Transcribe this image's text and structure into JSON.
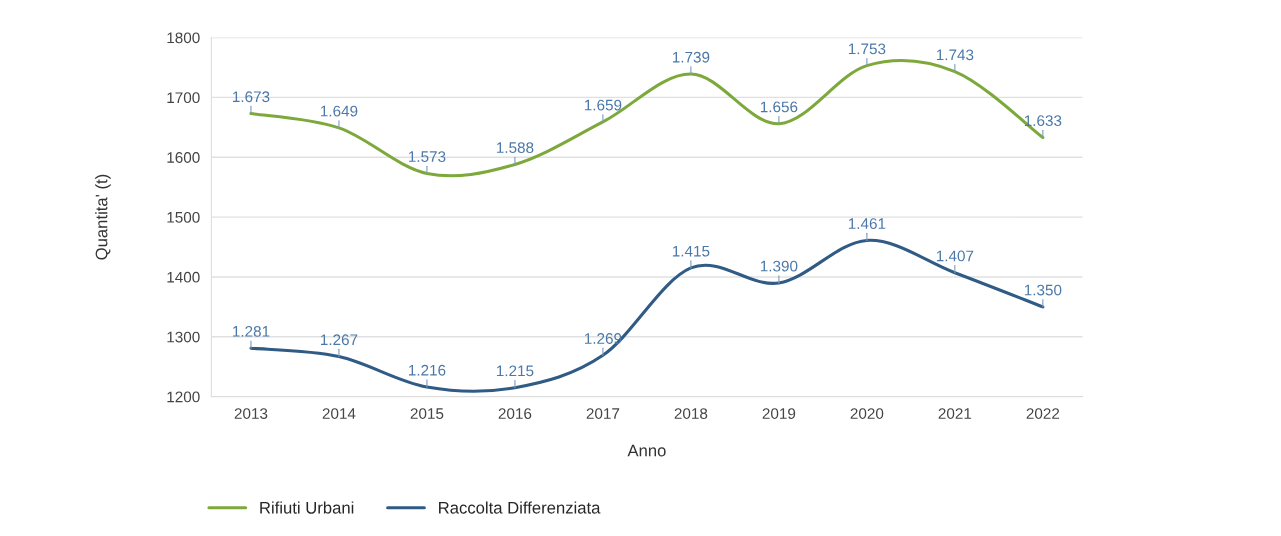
{
  "chart_data": {
    "type": "line",
    "xlabel": "Anno",
    "ylabel": "Quantita' (t)",
    "categories": [
      "2013",
      "2014",
      "2015",
      "2016",
      "2017",
      "2018",
      "2019",
      "2020",
      "2021",
      "2022"
    ],
    "series": [
      {
        "name": "Rifiuti Urbani",
        "color": "#7da83c",
        "values": [
          1673,
          1649,
          1573,
          1588,
          1659,
          1739,
          1656,
          1753,
          1743,
          1633
        ],
        "value_labels": [
          "1.673",
          "1.649",
          "1.573",
          "1.588",
          "1.659",
          "1.739",
          "1.656",
          "1.753",
          "1.743",
          "1.633"
        ]
      },
      {
        "name": "Raccolta Differenziata",
        "color": "#2f5b84",
        "values": [
          1281,
          1267,
          1216,
          1215,
          1269,
          1415,
          1390,
          1461,
          1407,
          1350
        ],
        "value_labels": [
          "1.281",
          "1.267",
          "1.216",
          "1.215",
          "1.269",
          "1.415",
          "1.390",
          "1.461",
          "1.407",
          "1.350"
        ]
      }
    ],
    "ylim": [
      1200,
      1800
    ],
    "yticks": [
      1200,
      1300,
      1400,
      1500,
      1600,
      1700,
      1800
    ],
    "grid": "y",
    "legend": "bottom left",
    "marker": "none",
    "line_style": "solid"
  }
}
